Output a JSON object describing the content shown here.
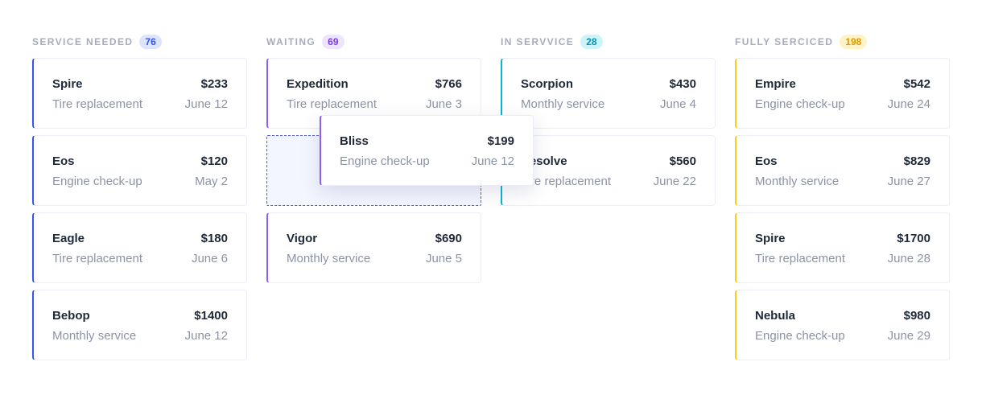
{
  "columns": [
    {
      "title": "SERVICE NEEDED",
      "count": "76",
      "color": "#3355f0",
      "badge_bg": "#dce4ff",
      "badge_fg": "#3355f0",
      "cards": [
        {
          "name": "Spire",
          "price": "$233",
          "service": "Tire replacement",
          "date": "June 12"
        },
        {
          "name": "Eos",
          "price": "$120",
          "service": "Engine check-up",
          "date": "May 2"
        },
        {
          "name": "Eagle",
          "price": "$180",
          "service": "Tire replacement",
          "date": "June 6"
        },
        {
          "name": "Bebop",
          "price": "$1400",
          "service": "Monthly service",
          "date": "June 12"
        }
      ]
    },
    {
      "title": "WAITING",
      "count": "69",
      "color": "#8b5cf6",
      "badge_bg": "#ede5ff",
      "badge_fg": "#7c3aed",
      "cards": [
        {
          "name": "Expedition",
          "price": "$766",
          "service": "Tire replacement",
          "date": "June 3"
        },
        null,
        {
          "name": "Vigor",
          "price": "$690",
          "service": "Monthly service",
          "date": "June 5"
        }
      ]
    },
    {
      "title": "IN SERVVICE",
      "count": "28",
      "color": "#06b6d4",
      "badge_bg": "#cdf4fa",
      "badge_fg": "#0891b2",
      "cards": [
        {
          "name": "Scorpion",
          "price": "$430",
          "service": "Monthly service",
          "date": "June 4"
        },
        {
          "name": "Resolve",
          "price": "$560",
          "service": "Tire replacement",
          "date": "June 22"
        }
      ]
    },
    {
      "title": "FULLY SERCICED",
      "count": "198",
      "color": "#facc15",
      "badge_bg": "#fef3c7",
      "badge_fg": "#d99a06",
      "cards": [
        {
          "name": "Empire",
          "price": "$542",
          "service": "Engine check-up",
          "date": "June 24"
        },
        {
          "name": "Eos",
          "price": "$829",
          "service": "Monthly service",
          "date": "June 27"
        },
        {
          "name": "Spire",
          "price": "$1700",
          "service": "Tire replacement",
          "date": "June 28"
        },
        {
          "name": "Nebula",
          "price": "$980",
          "service": "Engine check-up",
          "date": "June 29"
        }
      ]
    }
  ],
  "dragging": {
    "name": "Bliss",
    "price": "$199",
    "service": "Engine check-up",
    "date": "June 12"
  }
}
